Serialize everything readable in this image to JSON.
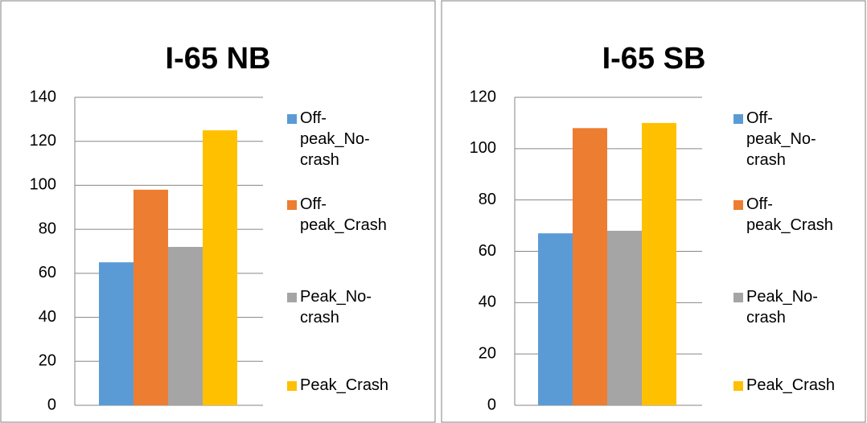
{
  "chart_data": [
    {
      "type": "bar",
      "title": "I-65 NB",
      "ylim": [
        0,
        140
      ],
      "yticks": [
        0,
        20,
        40,
        60,
        80,
        100,
        120,
        140
      ],
      "grid": true,
      "legend": "right",
      "series": [
        {
          "name": "Off-peak_No-crash",
          "color": "#5b9bd5",
          "values": [
            65
          ]
        },
        {
          "name": "Off-peak_Crash",
          "color": "#ed7d31",
          "values": [
            98
          ]
        },
        {
          "name": "Peak_No-crash",
          "color": "#a5a5a5",
          "values": [
            72
          ]
        },
        {
          "name": "Peak_Crash",
          "color": "#ffc000",
          "values": [
            125
          ]
        }
      ]
    },
    {
      "type": "bar",
      "title": "I-65 SB",
      "ylim": [
        0,
        120
      ],
      "yticks": [
        0,
        20,
        40,
        60,
        80,
        100,
        120
      ],
      "grid": true,
      "legend": "right",
      "series": [
        {
          "name": "Off-peak_No-crash",
          "color": "#5b9bd5",
          "values": [
            67
          ]
        },
        {
          "name": "Off-peak_Crash",
          "color": "#ed7d31",
          "values": [
            108
          ]
        },
        {
          "name": "Peak_No-crash",
          "color": "#a5a5a5",
          "values": [
            68
          ]
        },
        {
          "name": "Peak_Crash",
          "color": "#ffc000",
          "values": [
            110
          ]
        }
      ]
    }
  ]
}
